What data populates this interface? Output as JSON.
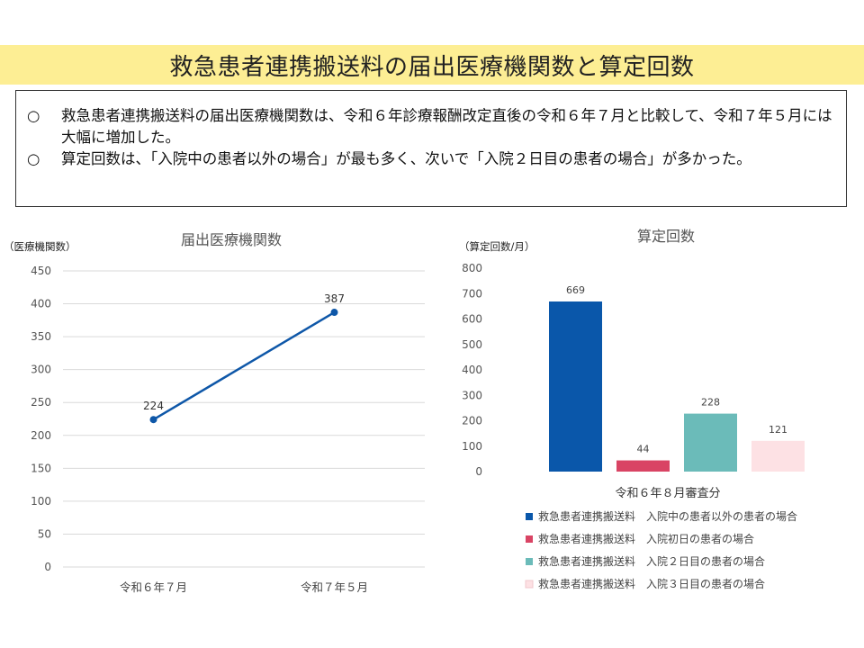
{
  "page": {
    "title": "救急患者連携搬送料の届出医療機関数と算定回数",
    "bullets": [
      {
        "mark": "○",
        "text": "救急患者連携搬送料の届出医療機関数は、令和６年診療報酬改定直後の令和６年７月と比較して、令和７年５月には大幅に増加した。"
      },
      {
        "mark": "○",
        "text": "算定回数は、「入院中の患者以外の場合」が最も多く、次いで「入院２日目の患者の場合」が多かった。"
      }
    ]
  },
  "chart_data": [
    {
      "type": "line",
      "title": "届出医療機関数",
      "ylabel": "（医療機関数）",
      "xlabel": "",
      "categories": [
        "令和６年７月",
        "令和７年５月"
      ],
      "series": [
        {
          "values": [
            224,
            387
          ]
        }
      ],
      "ylim": [
        0,
        450
      ],
      "yticks": [
        0,
        50,
        100,
        150,
        200,
        250,
        300,
        350,
        400,
        450
      ],
      "grid": true,
      "color": "#0e57a8"
    },
    {
      "type": "bar",
      "title": "算定回数",
      "ylabel": "（算定回数/月）",
      "xlabel": "令和６年８月審査分",
      "ylim": [
        0,
        800
      ],
      "yticks": [
        0,
        100,
        200,
        300,
        400,
        500,
        600,
        700,
        800
      ],
      "grid": false,
      "legend_position": "bottom",
      "series": [
        {
          "name": "救急患者連携搬送料　入院中の患者以外の患者の場合",
          "values": [
            669
          ],
          "color": "#0a57aa"
        },
        {
          "name": "救急患者連携搬送料　入院初日の患者の場合",
          "values": [
            44
          ],
          "color": "#d94464"
        },
        {
          "name": "救急患者連携搬送料　入院２日目の患者の場合",
          "values": [
            228
          ],
          "color": "#6bbbb9"
        },
        {
          "name": "救急患者連携搬送料　入院３日目の患者の場合",
          "values": [
            121
          ],
          "color": "#fde1e4"
        }
      ]
    }
  ]
}
